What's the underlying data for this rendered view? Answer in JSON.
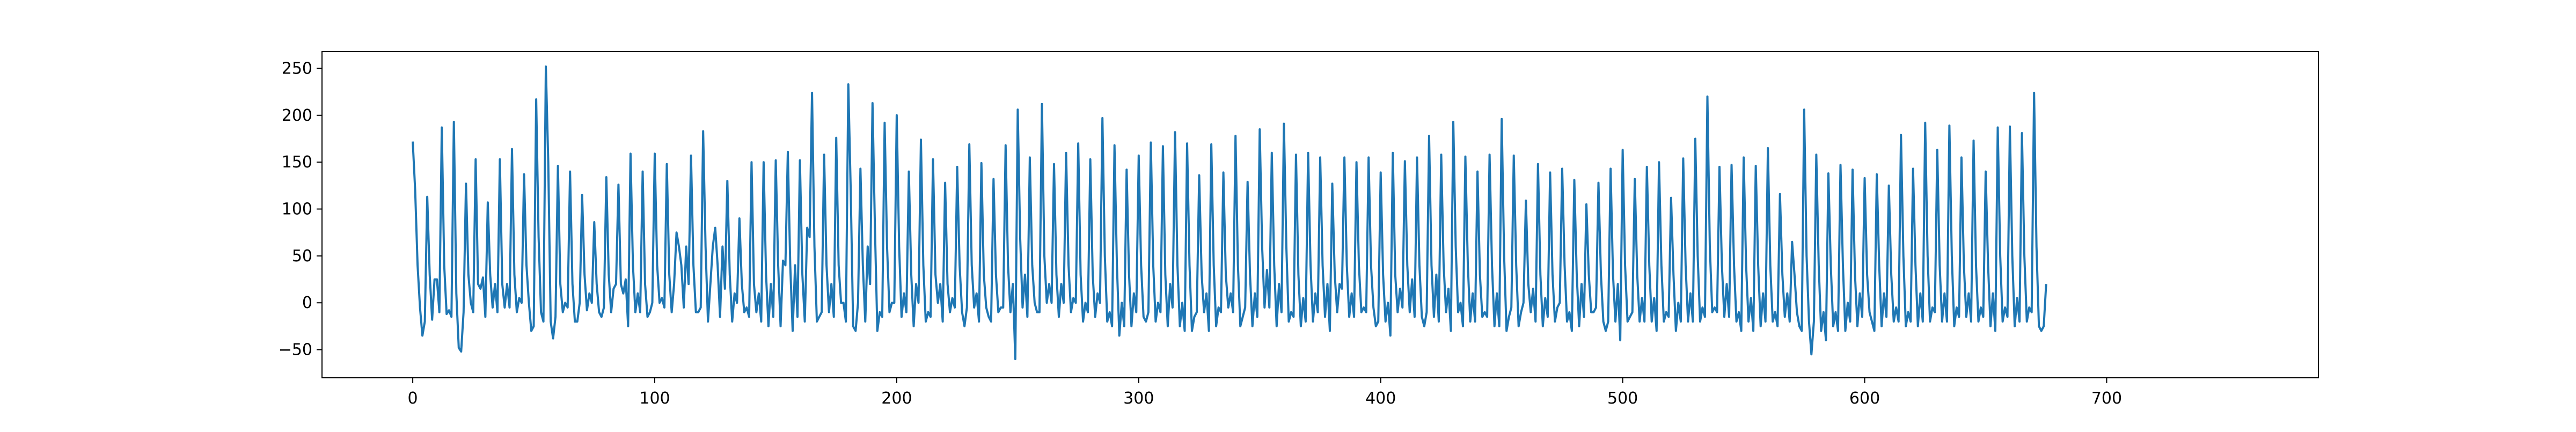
{
  "chart_data": {
    "type": "line",
    "title": "",
    "xlabel": "",
    "ylabel": "",
    "xlim": [
      -37.5,
      787.5
    ],
    "ylim": [
      -80,
      268
    ],
    "xticks": [
      0,
      100,
      200,
      300,
      400,
      500,
      600,
      700
    ],
    "yticks": [
      -50,
      0,
      50,
      100,
      150,
      200,
      250
    ],
    "xtick_labels": [
      "0",
      "100",
      "200",
      "300",
      "400",
      "500",
      "600",
      "700"
    ],
    "ytick_labels": [
      "−50",
      "0",
      "50",
      "100",
      "150",
      "200",
      "250"
    ],
    "grid": false,
    "legend": "none",
    "series": [
      {
        "color": "#1f77b4",
        "x_start": 0,
        "x_step": 1,
        "values": [
          172,
          120,
          40,
          -5,
          -35,
          -20,
          113,
          30,
          -18,
          25,
          25,
          -10,
          187,
          40,
          -12,
          -8,
          -15,
          193,
          10,
          -48,
          -52,
          -10,
          127,
          30,
          0,
          -10,
          153,
          20,
          15,
          27,
          -15,
          107,
          30,
          -5,
          20,
          -10,
          153,
          20,
          -5,
          20,
          -5,
          164,
          30,
          -10,
          5,
          0,
          137,
          40,
          0,
          -30,
          -25,
          217,
          70,
          -10,
          -20,
          252,
          150,
          -20,
          -38,
          -15,
          146,
          20,
          -10,
          0,
          -5,
          140,
          20,
          -20,
          -20,
          0,
          115,
          30,
          -8,
          10,
          0,
          86,
          20,
          -10,
          -15,
          -5,
          134,
          30,
          -10,
          15,
          20,
          126,
          20,
          10,
          25,
          -25,
          159,
          40,
          -10,
          10,
          -10,
          140,
          20,
          -15,
          -10,
          0,
          159,
          40,
          0,
          5,
          -5,
          148,
          30,
          -10,
          20,
          75,
          60,
          40,
          -5,
          60,
          20,
          157,
          40,
          -10,
          -10,
          -5,
          183,
          60,
          -20,
          20,
          60,
          80,
          40,
          -15,
          60,
          15,
          130,
          30,
          -20,
          10,
          0,
          90,
          20,
          -10,
          -5,
          -15,
          150,
          20,
          -10,
          10,
          -20,
          150,
          30,
          -25,
          20,
          -15,
          152,
          40,
          -25,
          45,
          40,
          161,
          40,
          -30,
          40,
          -15,
          152,
          30,
          -20,
          80,
          70,
          224,
          60,
          -20,
          -15,
          -10,
          158,
          40,
          -10,
          20,
          -15,
          176,
          40,
          0,
          0,
          -20,
          233,
          120,
          -25,
          -30,
          0,
          143,
          40,
          -20,
          60,
          20,
          213,
          80,
          -30,
          -10,
          -15,
          192,
          60,
          -10,
          0,
          0,
          200,
          60,
          -15,
          10,
          -10,
          140,
          30,
          -25,
          20,
          0,
          174,
          40,
          -20,
          -10,
          -15,
          153,
          30,
          0,
          20,
          -20,
          128,
          20,
          -10,
          5,
          -5,
          145,
          40,
          -10,
          -25,
          -5,
          169,
          40,
          -5,
          10,
          -20,
          149,
          30,
          -5,
          -15,
          -20,
          132,
          30,
          -10,
          -5,
          -5,
          168,
          40,
          -10,
          20,
          -60,
          206,
          70,
          -5,
          30,
          -15,
          155,
          40,
          0,
          -10,
          -10,
          212,
          50,
          0,
          20,
          0,
          148,
          30,
          -15,
          20,
          0,
          160,
          40,
          -10,
          5,
          0,
          170,
          30,
          -20,
          0,
          -10,
          153,
          30,
          -15,
          10,
          0,
          197,
          50,
          -20,
          -10,
          -25,
          168,
          40,
          -35,
          0,
          -25,
          142,
          30,
          -25,
          10,
          -10,
          157,
          40,
          -15,
          -20,
          -10,
          171,
          40,
          -20,
          0,
          -10,
          167,
          30,
          -25,
          20,
          -5,
          182,
          40,
          -25,
          0,
          -30,
          170,
          40,
          -30,
          -15,
          -10,
          136,
          30,
          -10,
          10,
          -30,
          169,
          40,
          -25,
          -5,
          -10,
          139,
          30,
          -5,
          10,
          -10,
          178,
          40,
          -25,
          -15,
          -5,
          129,
          30,
          -25,
          10,
          -15,
          185,
          60,
          -5,
          35,
          -5,
          160,
          40,
          -25,
          20,
          -10,
          191,
          60,
          -20,
          -10,
          -15,
          158,
          30,
          -25,
          5,
          -20,
          160,
          40,
          -20,
          10,
          -10,
          155,
          40,
          -15,
          20,
          -30,
          127,
          30,
          -10,
          20,
          15,
          155,
          40,
          -15,
          10,
          -15,
          150,
          40,
          -10,
          -5,
          -10,
          155,
          40,
          -5,
          -25,
          -20,
          139,
          30,
          -20,
          0,
          -35,
          160,
          30,
          -10,
          15,
          -5,
          151,
          40,
          -10,
          25,
          -15,
          155,
          40,
          -15,
          -25,
          -10,
          178,
          40,
          -15,
          30,
          -20,
          158,
          40,
          -10,
          15,
          -30,
          193,
          60,
          -10,
          0,
          -25,
          156,
          40,
          -20,
          10,
          -20,
          140,
          30,
          -15,
          -10,
          -15,
          158,
          40,
          -25,
          10,
          -25,
          196,
          50,
          -30,
          -15,
          -5,
          157,
          40,
          -25,
          -10,
          0,
          109,
          20,
          -10,
          15,
          -20,
          148,
          30,
          -25,
          5,
          -15,
          139,
          30,
          -20,
          -5,
          0,
          143,
          40,
          -20,
          -10,
          -30,
          131,
          30,
          -25,
          20,
          -15,
          105,
          30,
          -10,
          -10,
          -5,
          128,
          30,
          -20,
          -30,
          -20,
          143,
          30,
          -20,
          20,
          -40,
          163,
          40,
          -20,
          -15,
          -10,
          132,
          30,
          -20,
          5,
          -20,
          145,
          40,
          -20,
          5,
          -30,
          150,
          40,
          -20,
          -10,
          -15,
          112,
          30,
          -30,
          0,
          -20,
          154,
          40,
          -20,
          10,
          -20,
          175,
          50,
          -20,
          -5,
          -15,
          220,
          60,
          -10,
          -5,
          -10,
          145,
          40,
          -15,
          20,
          -15,
          147,
          40,
          -20,
          -10,
          -30,
          155,
          40,
          -20,
          5,
          -30,
          146,
          40,
          -25,
          10,
          -20,
          165,
          40,
          -20,
          -10,
          -25,
          116,
          30,
          -15,
          10,
          -20,
          65,
          30,
          -10,
          -25,
          -30,
          206,
          50,
          -20,
          -55,
          -20,
          158,
          40,
          -30,
          -10,
          -40,
          138,
          40,
          -25,
          -10,
          -30,
          147,
          40,
          -30,
          0,
          -20,
          142,
          30,
          -25,
          10,
          -15,
          133,
          30,
          -10,
          -20,
          -30,
          137,
          40,
          -25,
          10,
          -15,
          125,
          30,
          -20,
          -5,
          -20,
          179,
          50,
          -25,
          -10,
          -20,
          143,
          40,
          -25,
          10,
          -20,
          192,
          50,
          -20,
          -5,
          -10,
          163,
          40,
          -20,
          10,
          -20,
          189,
          50,
          -25,
          -5,
          -15,
          155,
          40,
          -15,
          10,
          -20,
          173,
          40,
          -20,
          -5,
          -15,
          140,
          40,
          -25,
          10,
          -30,
          187,
          50,
          -20,
          -5,
          -15,
          188,
          50,
          -25,
          5,
          -20,
          181,
          50,
          -20,
          -5,
          -10,
          224,
          60,
          -25,
          -30,
          -25,
          20
        ]
      }
    ]
  }
}
